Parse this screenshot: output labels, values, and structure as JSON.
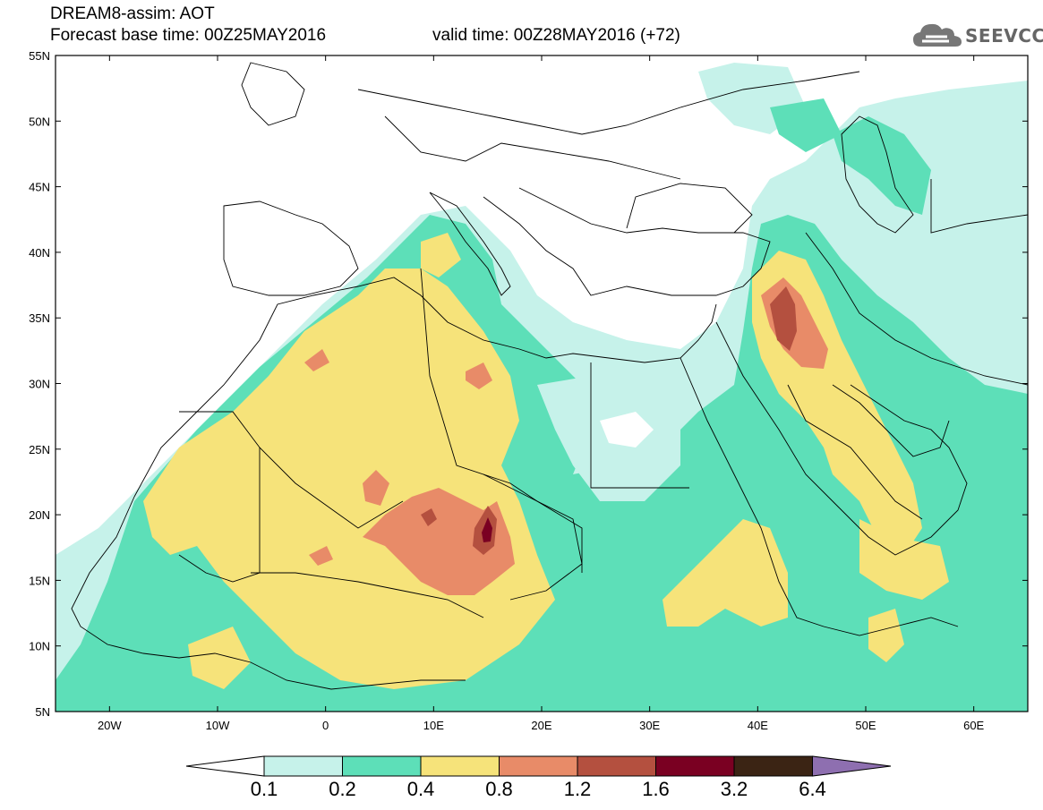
{
  "header": {
    "title_line1": "DREAM8-assim: AOT",
    "title_line2_left": "Forecast base time: 00Z25MAY2016",
    "title_line2_right": "valid time: 00Z28MAY2016 (+72)",
    "logo_text": "SEEVCCC"
  },
  "map": {
    "lat_labels": [
      "55N",
      "50N",
      "45N",
      "40N",
      "35N",
      "30N",
      "25N",
      "20N",
      "15N",
      "10N",
      "5N"
    ],
    "lon_labels": [
      "20W",
      "10W",
      "0",
      "10E",
      "20E",
      "30E",
      "40E",
      "50E",
      "60E"
    ],
    "lon_range": [
      -25,
      65
    ],
    "lat_range": [
      5,
      55
    ]
  },
  "colorbar": {
    "labels": [
      "0.1",
      "0.2",
      "0.4",
      "0.8",
      "1.2",
      "1.6",
      "3.2",
      "6.4"
    ],
    "colors": [
      "#ffffff",
      "#c6f2ea",
      "#5ddfb8",
      "#f6e37a",
      "#e88b68",
      "#b4503f",
      "#7a0022",
      "#3b2414",
      "#8e6fb0"
    ]
  },
  "palette": {
    "c1": "#c6f2ea",
    "c2": "#5ddfb8",
    "c3": "#f6e37a",
    "c4": "#e88b68",
    "c5": "#b4503f",
    "c6": "#7a0022"
  }
}
